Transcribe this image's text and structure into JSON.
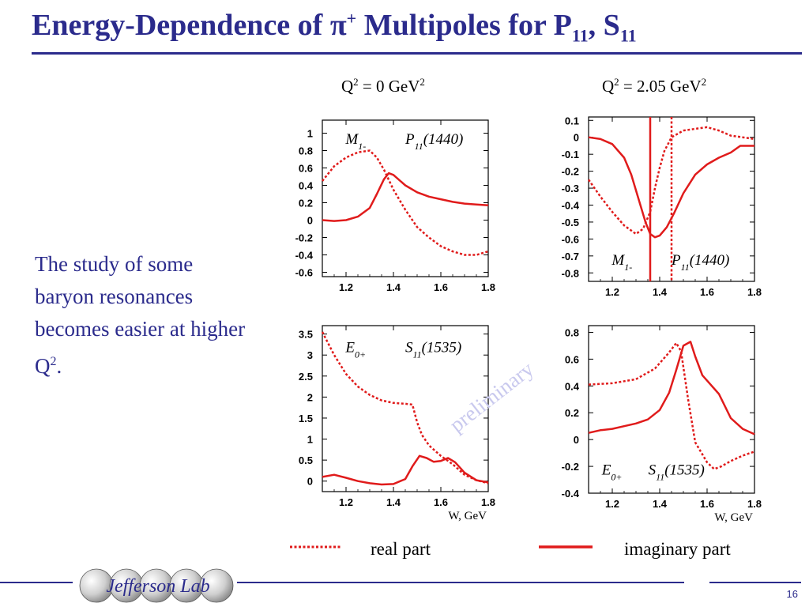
{
  "slide": {
    "title_main": "Energy-Dependence of π",
    "title_sup": "+",
    "title_rest": " Multipoles for P",
    "title_sub1": "11",
    "title_comma": ", S",
    "title_sub2": "11",
    "col_left_a": "Q",
    "col_left_sup": "2",
    "col_left_b": " = 0 GeV",
    "col_left_sup2": "2",
    "col_right_a": "Q",
    "col_right_sup": "2",
    "col_right_b": " = 2.05 GeV",
    "col_right_sup2": "2",
    "body_a": "The study of some baryon resonances becomes easier at higher Q",
    "body_sup": "2",
    "body_b": ".",
    "watermark": "preliminary",
    "legend_real": "real part",
    "legend_imag": "imaginary part",
    "logo_text": "Jefferson Lab",
    "page_number": "16"
  },
  "colors": {
    "title": "#2b2b8c",
    "curve": "#e01b1b",
    "watermark": "#c9c9ee"
  },
  "chart_data": [
    {
      "type": "line",
      "panel": "top-left",
      "multipole": "M1-",
      "resonance": "P11(1440)",
      "xlim": [
        1.1,
        1.8
      ],
      "ylim": [
        -0.65,
        1.15
      ],
      "xticks": [
        1.2,
        1.4,
        1.6,
        1.8
      ],
      "yticks": [
        1,
        0.8,
        0.6,
        0.4,
        0.2,
        0,
        -0.2,
        -0.4,
        -0.6
      ],
      "series": [
        {
          "name": "real part",
          "style": "dotted",
          "x": [
            1.1,
            1.15,
            1.2,
            1.25,
            1.3,
            1.33,
            1.36,
            1.4,
            1.45,
            1.5,
            1.55,
            1.6,
            1.65,
            1.7,
            1.75,
            1.8
          ],
          "y": [
            0.45,
            0.62,
            0.72,
            0.78,
            0.8,
            0.72,
            0.58,
            0.35,
            0.12,
            -0.08,
            -0.2,
            -0.3,
            -0.36,
            -0.4,
            -0.4,
            -0.36
          ]
        },
        {
          "name": "imaginary part",
          "style": "solid",
          "x": [
            1.1,
            1.15,
            1.2,
            1.25,
            1.3,
            1.33,
            1.36,
            1.38,
            1.4,
            1.45,
            1.5,
            1.55,
            1.6,
            1.65,
            1.7,
            1.75,
            1.8
          ],
          "y": [
            0.0,
            -0.01,
            0.0,
            0.04,
            0.14,
            0.3,
            0.47,
            0.54,
            0.52,
            0.4,
            0.32,
            0.27,
            0.24,
            0.21,
            0.19,
            0.18,
            0.17
          ]
        }
      ]
    },
    {
      "type": "line",
      "panel": "top-right",
      "multipole": "M1-",
      "resonance": "P11(1440)",
      "xlim": [
        1.1,
        1.8
      ],
      "ylim": [
        -0.85,
        0.12
      ],
      "xticks": [
        1.2,
        1.4,
        1.6,
        1.8
      ],
      "yticks": [
        0.1,
        0,
        -0.1,
        -0.2,
        -0.3,
        -0.4,
        -0.5,
        -0.6,
        -0.7,
        -0.8
      ],
      "vlines": [
        {
          "x": 1.36,
          "style": "solid"
        },
        {
          "x": 1.45,
          "style": "dotted"
        }
      ],
      "series": [
        {
          "name": "real part",
          "style": "dotted",
          "x": [
            1.1,
            1.15,
            1.2,
            1.25,
            1.3,
            1.33,
            1.36,
            1.38,
            1.4,
            1.42,
            1.45,
            1.5,
            1.55,
            1.6,
            1.65,
            1.7,
            1.75,
            1.8
          ],
          "y": [
            -0.25,
            -0.35,
            -0.44,
            -0.52,
            -0.57,
            -0.54,
            -0.44,
            -0.3,
            -0.18,
            -0.08,
            0.0,
            0.04,
            0.05,
            0.06,
            0.04,
            0.01,
            0.0,
            -0.01
          ]
        },
        {
          "name": "imaginary part",
          "style": "solid",
          "x": [
            1.1,
            1.15,
            1.2,
            1.25,
            1.28,
            1.31,
            1.34,
            1.36,
            1.38,
            1.4,
            1.43,
            1.46,
            1.5,
            1.55,
            1.6,
            1.65,
            1.7,
            1.74,
            1.8
          ],
          "y": [
            0.0,
            -0.01,
            -0.04,
            -0.12,
            -0.22,
            -0.36,
            -0.5,
            -0.57,
            -0.59,
            -0.58,
            -0.53,
            -0.45,
            -0.33,
            -0.22,
            -0.16,
            -0.12,
            -0.09,
            -0.05,
            -0.05
          ]
        }
      ]
    },
    {
      "type": "line",
      "panel": "bottom-left",
      "multipole": "E0+",
      "resonance": "S11(1535)",
      "xlim": [
        1.1,
        1.8
      ],
      "ylim": [
        -0.25,
        3.7
      ],
      "xticks": [
        1.2,
        1.4,
        1.6,
        1.8
      ],
      "yticks": [
        3.5,
        3,
        2.5,
        2,
        1.5,
        1,
        0.5,
        0
      ],
      "xlabel": "W, GeV",
      "series": [
        {
          "name": "real part",
          "style": "dotted",
          "x": [
            1.1,
            1.15,
            1.2,
            1.25,
            1.3,
            1.35,
            1.4,
            1.45,
            1.48,
            1.5,
            1.52,
            1.55,
            1.6,
            1.65,
            1.7,
            1.75,
            1.8
          ],
          "y": [
            3.55,
            3.0,
            2.55,
            2.25,
            2.05,
            1.92,
            1.86,
            1.84,
            1.82,
            1.4,
            1.1,
            0.85,
            0.6,
            0.4,
            0.15,
            0.02,
            -0.05
          ]
        },
        {
          "name": "imaginary part",
          "style": "solid",
          "x": [
            1.1,
            1.15,
            1.2,
            1.25,
            1.3,
            1.35,
            1.4,
            1.45,
            1.48,
            1.51,
            1.54,
            1.57,
            1.6,
            1.63,
            1.66,
            1.7,
            1.75,
            1.8
          ],
          "y": [
            0.1,
            0.15,
            0.08,
            0.0,
            -0.05,
            -0.08,
            -0.07,
            0.05,
            0.35,
            0.6,
            0.55,
            0.46,
            0.48,
            0.55,
            0.45,
            0.2,
            0.02,
            -0.03
          ]
        }
      ]
    },
    {
      "type": "line",
      "panel": "bottom-right",
      "multipole": "E0+",
      "resonance": "S11(1535)",
      "xlim": [
        1.1,
        1.8
      ],
      "ylim": [
        -0.4,
        0.85
      ],
      "xticks": [
        1.2,
        1.4,
        1.6,
        1.8
      ],
      "yticks": [
        0.8,
        0.6,
        0.4,
        0.2,
        0,
        -0.2,
        -0.4
      ],
      "xlabel": "W, GeV",
      "series": [
        {
          "name": "real part",
          "style": "dotted",
          "x": [
            1.1,
            1.2,
            1.3,
            1.38,
            1.44,
            1.47,
            1.49,
            1.52,
            1.55,
            1.6,
            1.63,
            1.66,
            1.7,
            1.75,
            1.8
          ],
          "y": [
            0.41,
            0.42,
            0.45,
            0.53,
            0.65,
            0.72,
            0.66,
            0.3,
            -0.02,
            -0.17,
            -0.22,
            -0.2,
            -0.16,
            -0.12,
            -0.09
          ]
        },
        {
          "name": "imaginary part",
          "style": "solid",
          "x": [
            1.1,
            1.15,
            1.2,
            1.25,
            1.3,
            1.35,
            1.4,
            1.44,
            1.47,
            1.5,
            1.53,
            1.55,
            1.58,
            1.61,
            1.65,
            1.7,
            1.75,
            1.8
          ],
          "y": [
            0.05,
            0.07,
            0.08,
            0.1,
            0.12,
            0.15,
            0.22,
            0.35,
            0.52,
            0.7,
            0.73,
            0.62,
            0.48,
            0.42,
            0.34,
            0.16,
            0.08,
            0.04
          ]
        }
      ]
    }
  ]
}
